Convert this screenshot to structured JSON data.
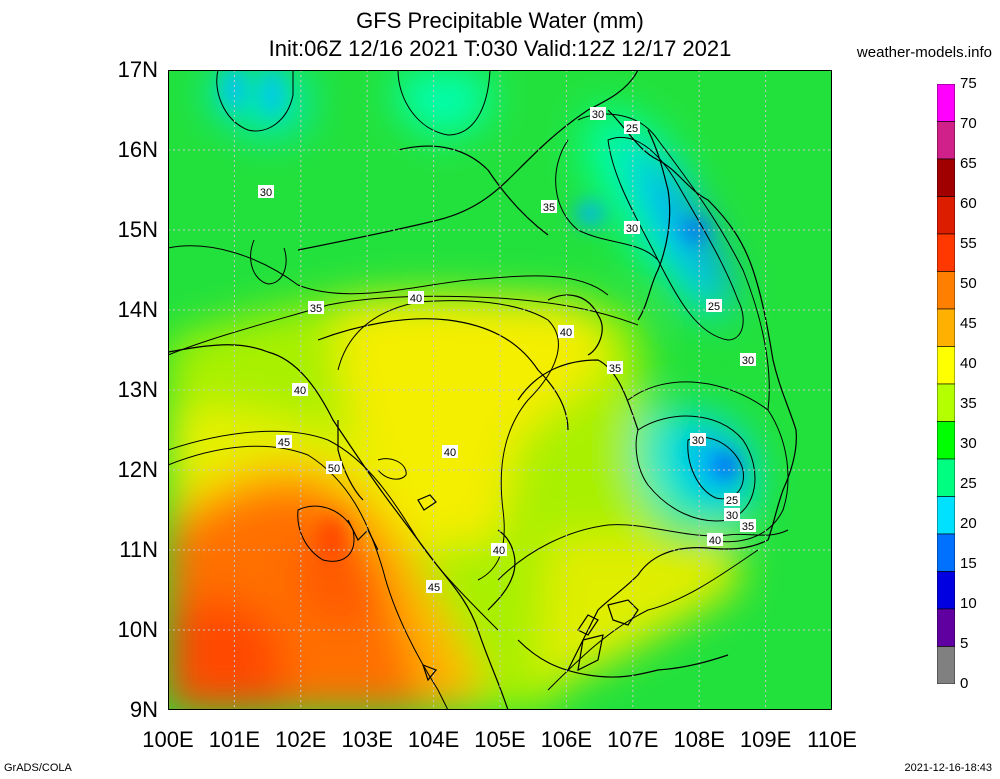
{
  "title": "GFS Precipitable Water (mm)",
  "subtitle": "Init:06Z 12/16 2021 T:030 Valid:12Z 12/17 2021",
  "site": "weather-models.info",
  "footer_left": "GrADS/COLA",
  "footer_right": "2021-12-16-18:43",
  "axes": {
    "lat_labels": [
      "17N",
      "16N",
      "15N",
      "14N",
      "13N",
      "12N",
      "11N",
      "10N",
      "9N"
    ],
    "lon_labels": [
      "100E",
      "101E",
      "102E",
      "103E",
      "104E",
      "105E",
      "106E",
      "107E",
      "108E",
      "109E",
      "110E"
    ]
  },
  "legend": {
    "labels": [
      "75",
      "70",
      "65",
      "60",
      "55",
      "50",
      "45",
      "40",
      "35",
      "30",
      "25",
      "20",
      "15",
      "10",
      "5",
      "0"
    ],
    "colors": [
      "#ff00ff",
      "#d0208a",
      "#a00000",
      "#dd1d00",
      "#ff3800",
      "#ff8000",
      "#ffb000",
      "#ffff00",
      "#b4ff00",
      "#00ff00",
      "#00ff80",
      "#00e0ff",
      "#0070ff",
      "#0000e0",
      "#6000a0",
      "#808080"
    ]
  },
  "contour_labels": [
    {
      "text": "30"
    },
    {
      "text": "25"
    },
    {
      "text": "30"
    },
    {
      "text": "35"
    },
    {
      "text": "30"
    },
    {
      "text": "35"
    },
    {
      "text": "40"
    },
    {
      "text": "40"
    },
    {
      "text": "25"
    },
    {
      "text": "30"
    },
    {
      "text": "35"
    },
    {
      "text": "40"
    },
    {
      "text": "30"
    },
    {
      "text": "45"
    },
    {
      "text": "50"
    },
    {
      "text": "40"
    },
    {
      "text": "25"
    },
    {
      "text": "30"
    },
    {
      "text": "35"
    },
    {
      "text": "40"
    },
    {
      "text": "40"
    },
    {
      "text": "45"
    }
  ]
}
